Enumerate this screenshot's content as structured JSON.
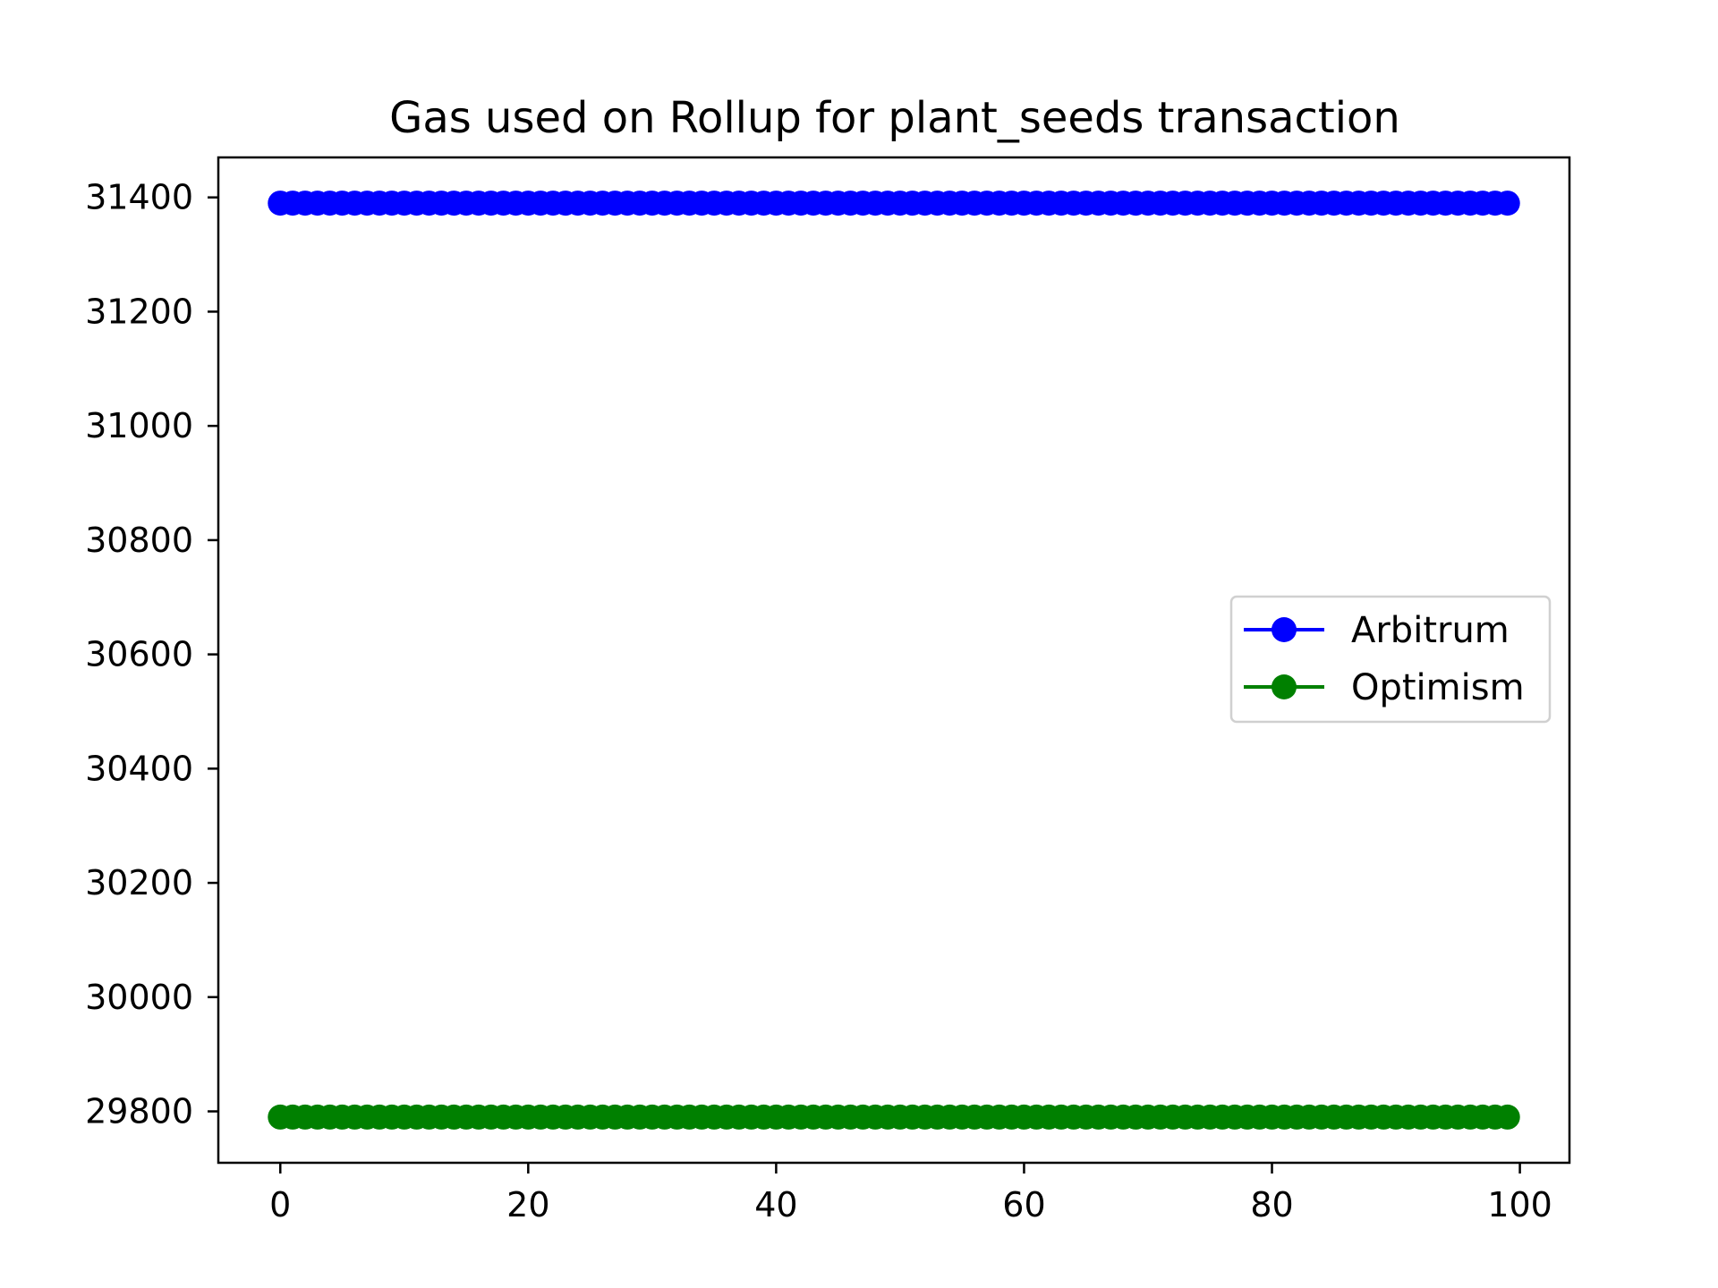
{
  "chart_data": {
    "type": "line",
    "title": "Gas used on Rollup for plant_seeds transaction",
    "xlabel": "",
    "ylabel": "",
    "x_range": [
      0,
      99
    ],
    "xlim": [
      -5,
      104
    ],
    "ylim": [
      29710,
      31470
    ],
    "x_ticks": [
      0,
      20,
      40,
      60,
      80,
      100
    ],
    "y_ticks": [
      29800,
      30000,
      30200,
      30400,
      30600,
      30800,
      31000,
      31200,
      31400
    ],
    "grid": false,
    "legend_position": "center-right",
    "series": [
      {
        "name": "Arbitrum",
        "color": "#0000ff",
        "marker": "circle",
        "constant_value": 31390
      },
      {
        "name": "Optimism",
        "color": "#008000",
        "marker": "circle",
        "constant_value": 29790
      }
    ]
  }
}
